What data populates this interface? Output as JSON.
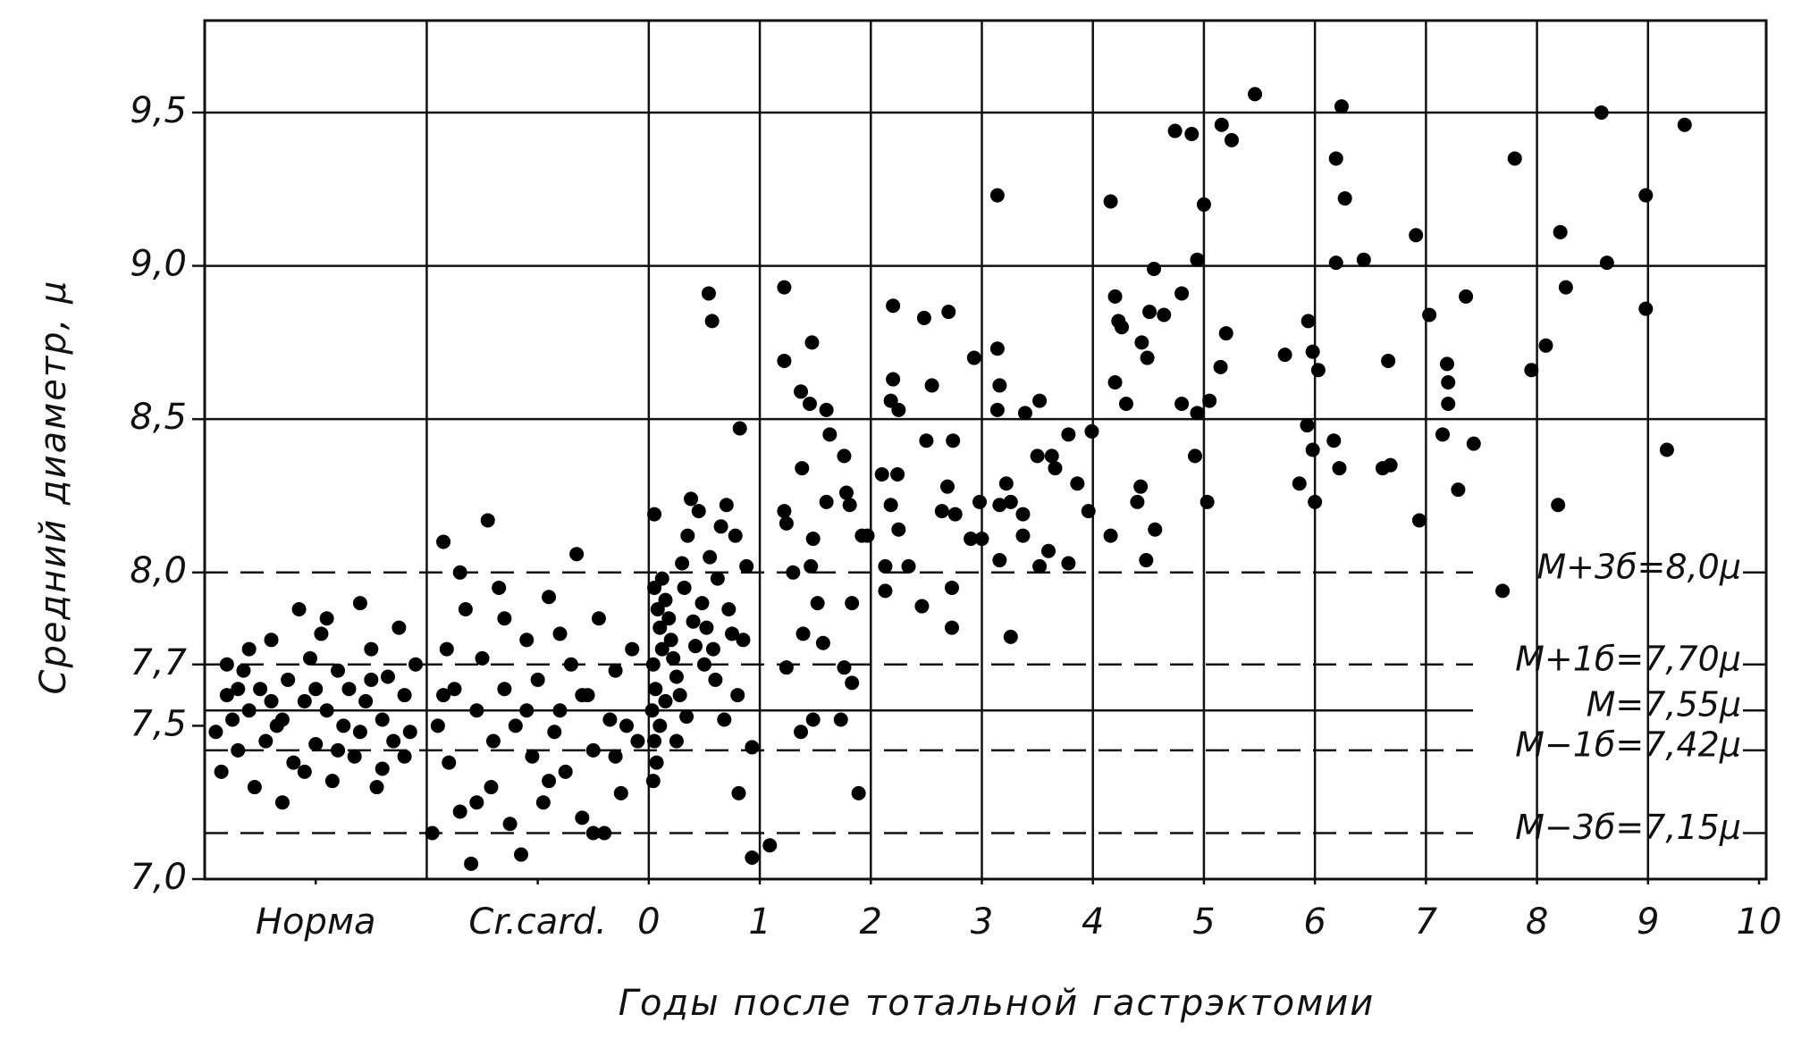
{
  "chart_data": {
    "type": "scatter",
    "x_label": "Годы после тотальной гастрэктомии",
    "y_label": "Средний диаметр, μ",
    "xlim": [
      -4,
      10
    ],
    "ylim": [
      7.0,
      9.8
    ],
    "xticks": [
      {
        "value": -3,
        "label": "Норма"
      },
      {
        "value": -1,
        "label": "Cr.card."
      },
      0,
      1,
      2,
      3,
      4,
      5,
      6,
      7,
      8,
      9,
      10
    ],
    "yticks": [
      {
        "value": 7.0,
        "label": "7,0"
      },
      {
        "value": 7.5,
        "label": "7,5"
      },
      {
        "value": 7.7,
        "label": "7,7"
      },
      {
        "value": 8.0,
        "label": "8,0"
      },
      {
        "value": 8.5,
        "label": "8,5"
      },
      {
        "value": 9.0,
        "label": "9,0"
      },
      {
        "value": 9.5,
        "label": "9,5"
      }
    ],
    "x_grid_lines": [
      -2,
      0,
      1,
      2,
      3,
      4,
      5,
      6,
      7,
      8,
      9
    ],
    "y_grid_lines": [
      8.5,
      9.0,
      9.5
    ],
    "reference_lines": [
      {
        "value": 8.0,
        "label": "M+3б=8,0μ",
        "style": "dashed"
      },
      {
        "value": 7.7,
        "label": "M+1б=7,70μ",
        "style": "dashed"
      },
      {
        "value": 7.55,
        "label": "M=7,55μ",
        "style": "solid"
      },
      {
        "value": 7.42,
        "label": "M−1б=7,42μ",
        "style": "dashed"
      },
      {
        "value": 7.15,
        "label": "M−3б=7,15μ",
        "style": "dashed"
      }
    ],
    "color": "#000000",
    "x": [
      -3.9,
      -3.85,
      -3.8,
      -3.75,
      -3.7,
      -3.65,
      -3.6,
      -3.55,
      -3.5,
      -3.45,
      -3.4,
      -3.35,
      -3.3,
      -3.25,
      -3.2,
      -3.15,
      -3.1,
      -3.05,
      -3.0,
      -2.95,
      -2.9,
      -2.85,
      -2.8,
      -2.75,
      -2.7,
      -2.65,
      -2.6,
      -2.55,
      -2.5,
      -2.45,
      -2.4,
      -2.35,
      -2.3,
      -2.25,
      -2.2,
      -2.15,
      -2.1,
      -3.6,
      -3.0,
      -2.6,
      -3.3,
      -2.8,
      -3.8,
      -2.4,
      -3.1,
      -2.9,
      -3.4,
      -2.2,
      -3.7,
      -2.5,
      -1.95,
      -1.9,
      -1.85,
      -1.82,
      -1.8,
      -1.75,
      -1.7,
      -1.65,
      -1.6,
      -1.55,
      -1.5,
      -1.45,
      -1.42,
      -1.4,
      -1.35,
      -1.3,
      -1.25,
      -1.2,
      -1.15,
      -1.1,
      -1.05,
      -1.0,
      -0.95,
      -0.9,
      -0.85,
      -0.8,
      -0.75,
      -0.7,
      -0.65,
      -0.6,
      -0.55,
      -0.5,
      -0.45,
      -0.4,
      -0.35,
      -0.3,
      -0.25,
      -0.2,
      -0.15,
      -0.1,
      -1.7,
      -1.3,
      -0.9,
      -0.6,
      -1.55,
      -1.1,
      -0.3,
      -0.8,
      -1.85,
      -0.5,
      0.05,
      0.05,
      0.08,
      0.1,
      0.12,
      0.04,
      0.06,
      0.03,
      0.1,
      0.05,
      0.07,
      0.04,
      0.12,
      0.15,
      0.18,
      0.2,
      0.22,
      0.25,
      0.28,
      0.3,
      0.32,
      0.35,
      0.38,
      0.4,
      0.42,
      0.45,
      0.48,
      0.5,
      0.52,
      0.55,
      0.58,
      0.6,
      0.62,
      0.65,
      0.7,
      0.72,
      0.75,
      0.78,
      0.8,
      0.85,
      0.88,
      0.68,
      0.34,
      0.15,
      0.25,
      0.54,
      0.57,
      1.22,
      1.22,
      1.47,
      1.37,
      1.45,
      1.6,
      0.82,
      1.38,
      1.63,
      1.76,
      1.78,
      1.6,
      1.81,
      1.22,
      1.24,
      1.48,
      1.92,
      1.97,
      1.3,
      1.46,
      1.52,
      1.83,
      1.39,
      1.57,
      1.76,
      1.24,
      1.83,
      1.73,
      1.48,
      1.37,
      1.89,
      0.93,
      0.81,
      1.09,
      0.93,
      2.2,
      2.48,
      2.7,
      2.55,
      2.2,
      2.18,
      2.25,
      2.93,
      2.5,
      2.74,
      2.1,
      2.24,
      2.69,
      2.18,
      2.64,
      2.76,
      2.9,
      3.0,
      2.25,
      2.13,
      2.34,
      2.46,
      2.73,
      2.73,
      2.13,
      3.14,
      3.14,
      3.16,
      3.14,
      3.52,
      3.39,
      3.22,
      2.98,
      3.16,
      3.26,
      3.5,
      3.63,
      3.66,
      3.78,
      3.99,
      3.86,
      3.96,
      3.37,
      3.6,
      3.52,
      3.78,
      3.16,
      3.26,
      3.37,
      4.16,
      4.74,
      4.89,
      5.0,
      4.94,
      4.55,
      4.2,
      4.23,
      4.26,
      4.51,
      4.64,
      4.8,
      4.44,
      4.49,
      4.2,
      4.3,
      4.8,
      4.94,
      4.92,
      4.43,
      4.4,
      4.56,
      4.16,
      4.48,
      5.03,
      5.46,
      5.16,
      5.25,
      5.2,
      5.15,
      5.05,
      5.73,
      5.93,
      5.98,
      5.86,
      6.0,
      5.94,
      5.98,
      6.03,
      6.24,
      6.19,
      6.27,
      6.19,
      6.44,
      6.17,
      6.22,
      6.61,
      6.68,
      6.66,
      6.91,
      7.03,
      7.19,
      7.2,
      7.2,
      7.15,
      7.43,
      7.36,
      7.29,
      6.94,
      7.8,
      8.08,
      7.95,
      8.21,
      8.26,
      8.19,
      7.69,
      8.58,
      8.63,
      8.98,
      8.98,
      9.17,
      9.33
    ],
    "values": [
      7.48,
      7.35,
      7.6,
      7.52,
      7.42,
      7.68,
      7.55,
      7.3,
      7.62,
      7.45,
      7.78,
      7.5,
      7.25,
      7.65,
      7.38,
      7.88,
      7.58,
      7.72,
      7.44,
      7.8,
      7.55,
      7.32,
      7.68,
      7.5,
      7.62,
      7.4,
      7.9,
      7.58,
      7.75,
      7.3,
      7.52,
      7.66,
      7.45,
      7.82,
      7.6,
      7.48,
      7.7,
      7.75,
      7.62,
      7.48,
      7.52,
      7.42,
      7.7,
      7.36,
      7.35,
      7.85,
      7.58,
      7.4,
      7.62,
      7.65,
      7.15,
      7.5,
      8.1,
      7.75,
      7.38,
      7.62,
      7.22,
      7.88,
      7.05,
      7.55,
      7.72,
      8.17,
      7.3,
      7.45,
      7.95,
      7.62,
      7.18,
      7.5,
      7.08,
      7.78,
      7.4,
      7.65,
      7.25,
      7.92,
      7.48,
      7.55,
      7.35,
      7.7,
      8.06,
      7.2,
      7.6,
      7.42,
      7.85,
      7.15,
      7.52,
      7.68,
      7.28,
      7.5,
      7.75,
      7.45,
      8.0,
      7.85,
      7.32,
      7.6,
      7.25,
      7.55,
      7.4,
      7.8,
      7.6,
      7.15,
      7.95,
      8.19,
      7.88,
      7.82,
      7.75,
      7.7,
      7.62,
      7.55,
      7.5,
      7.45,
      7.38,
      7.32,
      7.98,
      7.91,
      7.85,
      7.78,
      7.72,
      7.66,
      7.6,
      8.03,
      7.95,
      8.12,
      8.24,
      7.84,
      7.76,
      8.2,
      7.9,
      7.7,
      7.82,
      8.05,
      7.75,
      7.65,
      7.98,
      8.15,
      8.22,
      7.88,
      7.8,
      8.12,
      7.6,
      7.78,
      8.02,
      7.52,
      7.53,
      7.58,
      7.45,
      8.91,
      8.82,
      8.93,
      8.69,
      8.75,
      8.59,
      8.55,
      8.53,
      8.47,
      8.34,
      8.45,
      8.38,
      8.26,
      8.23,
      8.22,
      8.2,
      8.16,
      8.11,
      8.12,
      8.12,
      8.0,
      8.02,
      7.9,
      7.9,
      7.8,
      7.77,
      7.69,
      7.69,
      7.64,
      7.52,
      7.52,
      7.48,
      7.28,
      7.43,
      7.28,
      7.11,
      7.07,
      8.87,
      8.83,
      8.85,
      8.61,
      8.63,
      8.56,
      8.53,
      8.7,
      8.43,
      8.43,
      8.32,
      8.32,
      8.28,
      8.22,
      8.2,
      8.19,
      8.11,
      8.11,
      8.14,
      8.02,
      8.02,
      7.89,
      7.95,
      7.82,
      7.94,
      9.23,
      8.73,
      8.61,
      8.53,
      8.56,
      8.52,
      8.29,
      8.23,
      8.22,
      8.23,
      8.38,
      8.38,
      8.34,
      8.45,
      8.46,
      8.29,
      8.2,
      8.12,
      8.07,
      8.02,
      8.03,
      8.04,
      7.79,
      8.19,
      9.21,
      9.44,
      9.43,
      9.2,
      9.02,
      8.99,
      8.9,
      8.82,
      8.8,
      8.85,
      8.84,
      8.91,
      8.75,
      8.7,
      8.62,
      8.55,
      8.55,
      8.52,
      8.38,
      8.28,
      8.23,
      8.14,
      8.12,
      8.04,
      8.23,
      9.56,
      9.46,
      9.41,
      8.78,
      8.67,
      8.56,
      8.71,
      8.48,
      8.4,
      8.29,
      8.23,
      8.82,
      8.72,
      8.66,
      9.52,
      9.35,
      9.22,
      9.01,
      9.02,
      8.43,
      8.34,
      8.34,
      8.35,
      8.69,
      9.1,
      8.84,
      8.68,
      8.62,
      8.55,
      8.45,
      8.42,
      8.9,
      8.27,
      8.17,
      9.35,
      8.74,
      8.66,
      9.11,
      8.93,
      8.22,
      7.94,
      9.5,
      9.01,
      9.23,
      8.86,
      8.4,
      9.46
    ]
  }
}
